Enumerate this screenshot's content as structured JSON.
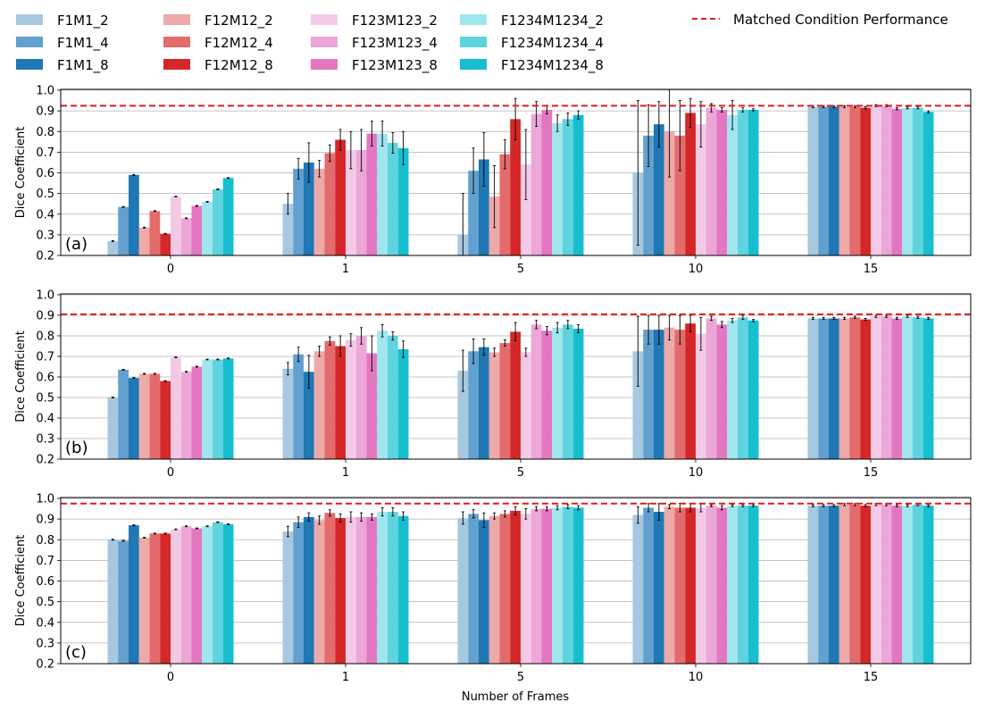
{
  "legend": {
    "items": [
      {
        "label": "F1M1_2",
        "color": "#a6c8e0"
      },
      {
        "label": "F1M1_4",
        "color": "#62a0cf"
      },
      {
        "label": "F1M1_8",
        "color": "#1f77b4"
      },
      {
        "label": "F12M12_2",
        "color": "#eea9a9"
      },
      {
        "label": "F12M12_4",
        "color": "#e46b6c"
      },
      {
        "label": "F12M12_8",
        "color": "#d62728"
      },
      {
        "label": "F123M123_2",
        "color": "#f4c9e6"
      },
      {
        "label": "F123M123_4",
        "color": "#eca6d8"
      },
      {
        "label": "F123M123_8",
        "color": "#e377c2"
      },
      {
        "label": "F1234M1234_2",
        "color": "#a0e6ee"
      },
      {
        "label": "F1234M1234_4",
        "color": "#5fd3de"
      },
      {
        "label": "F1234M1234_8",
        "color": "#17becf"
      }
    ],
    "reference_label": "Matched Condition Performance",
    "reference_color": "#e41a1c"
  },
  "chart_data": [
    {
      "type": "bar",
      "panel_label": "(a)",
      "categories": [
        "0",
        "1",
        "5",
        "10",
        "15"
      ],
      "xlabel": "",
      "ylabel": "Dice Coefficient",
      "ylim": [
        0.2,
        1.0
      ],
      "yticks": [
        "0.2",
        "0.3",
        "0.4",
        "0.5",
        "0.6",
        "0.7",
        "0.8",
        "0.9",
        "1.0"
      ],
      "grid": true,
      "reference_line": 0.925,
      "series": [
        {
          "name": "F1M1_2",
          "values": [
            0.27,
            0.45,
            0.3,
            0.6,
            0.92
          ],
          "errors": [
            0.002,
            0.05,
            0.2,
            0.35,
            0.005
          ]
        },
        {
          "name": "F1M1_4",
          "values": [
            0.435,
            0.62,
            0.61,
            0.78,
            0.92
          ],
          "errors": [
            0.002,
            0.05,
            0.11,
            0.15,
            0.005
          ]
        },
        {
          "name": "F1M1_8",
          "values": [
            0.59,
            0.65,
            0.665,
            0.835,
            0.92
          ],
          "errors": [
            0.002,
            0.095,
            0.13,
            0.11,
            0.005
          ]
        },
        {
          "name": "F12M12_2",
          "values": [
            0.335,
            0.62,
            0.485,
            0.8,
            0.92
          ],
          "errors": [
            0.002,
            0.04,
            0.15,
            0.22,
            0.005
          ]
        },
        {
          "name": "F12M12_4",
          "values": [
            0.415,
            0.695,
            0.69,
            0.78,
            0.92
          ],
          "errors": [
            0.002,
            0.04,
            0.07,
            0.17,
            0.005
          ]
        },
        {
          "name": "F12M12_8",
          "values": [
            0.305,
            0.76,
            0.86,
            0.89,
            0.915
          ],
          "errors": [
            0.002,
            0.05,
            0.1,
            0.07,
            0.005
          ]
        },
        {
          "name": "F123M123_2",
          "values": [
            0.485,
            0.71,
            0.64,
            0.835,
            0.925
          ],
          "errors": [
            0.002,
            0.09,
            0.17,
            0.11,
            0.005
          ]
        },
        {
          "name": "F123M123_4",
          "values": [
            0.38,
            0.71,
            0.885,
            0.915,
            0.925
          ],
          "errors": [
            0.002,
            0.1,
            0.06,
            0.02,
            0.005
          ]
        },
        {
          "name": "F123M123_8",
          "values": [
            0.44,
            0.79,
            0.905,
            0.905,
            0.91
          ],
          "errors": [
            0.002,
            0.06,
            0.02,
            0.01,
            0.005
          ]
        },
        {
          "name": "F1234M1234_2",
          "values": [
            0.46,
            0.79,
            0.84,
            0.88,
            0.915
          ],
          "errors": [
            0.002,
            0.06,
            0.04,
            0.07,
            0.005
          ]
        },
        {
          "name": "F1234M1234_4",
          "values": [
            0.52,
            0.745,
            0.86,
            0.905,
            0.915
          ],
          "errors": [
            0.002,
            0.05,
            0.03,
            0.01,
            0.005
          ]
        },
        {
          "name": "F1234M1234_8",
          "values": [
            0.575,
            0.72,
            0.88,
            0.905,
            0.895
          ],
          "errors": [
            0.002,
            0.08,
            0.02,
            0.005,
            0.005
          ]
        }
      ]
    },
    {
      "type": "bar",
      "panel_label": "(b)",
      "categories": [
        "0",
        "1",
        "5",
        "10",
        "15"
      ],
      "xlabel": "",
      "ylabel": "Dice Coefficient",
      "ylim": [
        0.2,
        1.0
      ],
      "yticks": [
        "0.2",
        "0.3",
        "0.4",
        "0.5",
        "0.6",
        "0.7",
        "0.8",
        "0.9",
        "1.0"
      ],
      "grid": true,
      "reference_line": 0.905,
      "series": [
        {
          "name": "F1M1_2",
          "values": [
            0.5,
            0.64,
            0.63,
            0.725,
            0.885
          ],
          "errors": [
            0.002,
            0.03,
            0.1,
            0.17,
            0.005
          ]
        },
        {
          "name": "F1M1_4",
          "values": [
            0.635,
            0.71,
            0.725,
            0.83,
            0.885
          ],
          "errors": [
            0.002,
            0.035,
            0.06,
            0.07,
            0.005
          ]
        },
        {
          "name": "F1M1_8",
          "values": [
            0.595,
            0.625,
            0.745,
            0.83,
            0.885
          ],
          "errors": [
            0.002,
            0.08,
            0.04,
            0.07,
            0.005
          ]
        },
        {
          "name": "F12M12_2",
          "values": [
            0.615,
            0.725,
            0.72,
            0.84,
            0.885
          ],
          "errors": [
            0.002,
            0.025,
            0.02,
            0.06,
            0.005
          ]
        },
        {
          "name": "F12M12_4",
          "values": [
            0.615,
            0.775,
            0.765,
            0.83,
            0.89
          ],
          "errors": [
            0.002,
            0.02,
            0.015,
            0.07,
            0.005
          ]
        },
        {
          "name": "F12M12_8",
          "values": [
            0.58,
            0.75,
            0.82,
            0.86,
            0.88
          ],
          "errors": [
            0.002,
            0.05,
            0.045,
            0.04,
            0.005
          ]
        },
        {
          "name": "F123M123_2",
          "values": [
            0.695,
            0.78,
            0.72,
            0.81,
            0.895
          ],
          "errors": [
            0.002,
            0.03,
            0.02,
            0.08,
            0.005
          ]
        },
        {
          "name": "F123M123_4",
          "values": [
            0.625,
            0.8,
            0.855,
            0.885,
            0.895
          ],
          "errors": [
            0.002,
            0.04,
            0.02,
            0.01,
            0.005
          ]
        },
        {
          "name": "F123M123_8",
          "values": [
            0.65,
            0.715,
            0.825,
            0.855,
            0.885
          ],
          "errors": [
            0.002,
            0.085,
            0.02,
            0.015,
            0.005
          ]
        },
        {
          "name": "F1234M1234_2",
          "values": [
            0.685,
            0.825,
            0.84,
            0.875,
            0.895
          ],
          "errors": [
            0.002,
            0.03,
            0.025,
            0.01,
            0.005
          ]
        },
        {
          "name": "F1234M1234_4",
          "values": [
            0.685,
            0.8,
            0.855,
            0.89,
            0.89
          ],
          "errors": [
            0.002,
            0.02,
            0.02,
            0.01,
            0.005
          ]
        },
        {
          "name": "F1234M1234_8",
          "values": [
            0.69,
            0.735,
            0.835,
            0.875,
            0.885
          ],
          "errors": [
            0.002,
            0.04,
            0.02,
            0.005,
            0.005
          ]
        }
      ]
    },
    {
      "type": "bar",
      "panel_label": "(c)",
      "categories": [
        "0",
        "1",
        "5",
        "10",
        "15"
      ],
      "xlabel": "Number of Frames",
      "ylabel": "Dice Coefficient",
      "ylim": [
        0.2,
        1.0
      ],
      "yticks": [
        "0.2",
        "0.3",
        "0.4",
        "0.5",
        "0.6",
        "0.7",
        "0.8",
        "0.9",
        "1.0"
      ],
      "grid": true,
      "reference_line": 0.975,
      "series": [
        {
          "name": "F1M1_2",
          "values": [
            0.8,
            0.84,
            0.905,
            0.92,
            0.965
          ],
          "errors": [
            0.002,
            0.025,
            0.03,
            0.04,
            0.005
          ]
        },
        {
          "name": "F1M1_4",
          "values": [
            0.795,
            0.885,
            0.925,
            0.955,
            0.965
          ],
          "errors": [
            0.002,
            0.025,
            0.02,
            0.02,
            0.005
          ]
        },
        {
          "name": "F1M1_8",
          "values": [
            0.87,
            0.91,
            0.895,
            0.935,
            0.965
          ],
          "errors": [
            0.002,
            0.02,
            0.035,
            0.04,
            0.005
          ]
        },
        {
          "name": "F12M12_2",
          "values": [
            0.81,
            0.895,
            0.915,
            0.96,
            0.97
          ],
          "errors": [
            0.002,
            0.02,
            0.015,
            0.01,
            0.005
          ]
        },
        {
          "name": "F12M12_4",
          "values": [
            0.83,
            0.93,
            0.925,
            0.955,
            0.97
          ],
          "errors": [
            0.002,
            0.015,
            0.015,
            0.02,
            0.005
          ]
        },
        {
          "name": "F12M12_8",
          "values": [
            0.83,
            0.905,
            0.94,
            0.955,
            0.965
          ],
          "errors": [
            0.002,
            0.02,
            0.02,
            0.02,
            0.005
          ]
        },
        {
          "name": "F123M123_2",
          "values": [
            0.85,
            0.91,
            0.925,
            0.955,
            0.97
          ],
          "errors": [
            0.002,
            0.025,
            0.025,
            0.02,
            0.005
          ]
        },
        {
          "name": "F123M123_4",
          "values": [
            0.865,
            0.91,
            0.95,
            0.965,
            0.97
          ],
          "errors": [
            0.002,
            0.02,
            0.01,
            0.005,
            0.005
          ]
        },
        {
          "name": "F123M123_8",
          "values": [
            0.855,
            0.91,
            0.95,
            0.955,
            0.965
          ],
          "errors": [
            0.002,
            0.015,
            0.01,
            0.01,
            0.005
          ]
        },
        {
          "name": "F1234M1234_2",
          "values": [
            0.865,
            0.935,
            0.955,
            0.965,
            0.965
          ],
          "errors": [
            0.002,
            0.02,
            0.01,
            0.005,
            0.005
          ]
        },
        {
          "name": "F1234M1234_4",
          "values": [
            0.885,
            0.935,
            0.96,
            0.965,
            0.97
          ],
          "errors": [
            0.002,
            0.02,
            0.01,
            0.005,
            0.005
          ]
        },
        {
          "name": "F1234M1234_8",
          "values": [
            0.875,
            0.915,
            0.955,
            0.965,
            0.965
          ],
          "errors": [
            0.002,
            0.02,
            0.01,
            0.005,
            0.005
          ]
        }
      ]
    }
  ]
}
